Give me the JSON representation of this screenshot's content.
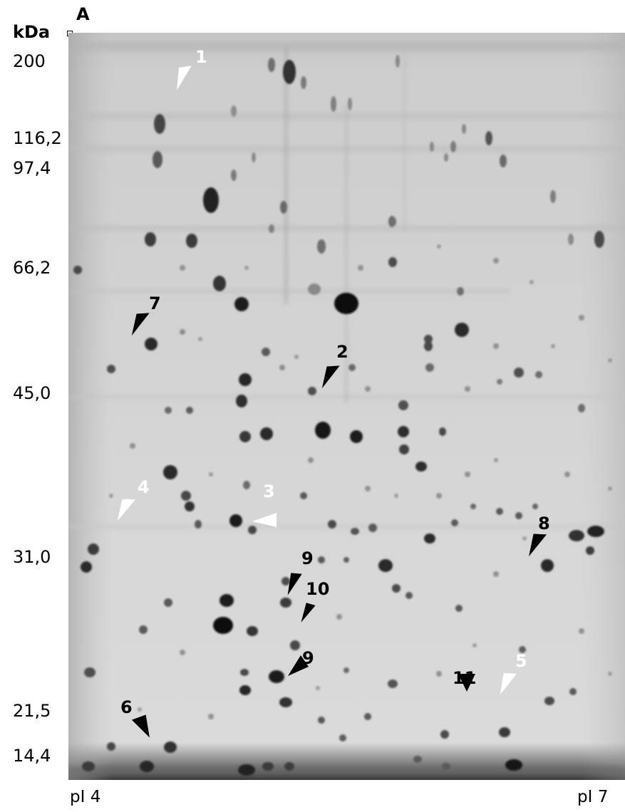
{
  "panel_label": "A",
  "y_axis": {
    "unit": "kDa",
    "markers": [
      "200",
      "116,2",
      "97,4",
      "66,2",
      "45,0",
      "31,0",
      "21,5",
      "14,4"
    ]
  },
  "x_axis": {
    "left_label": "pI 4",
    "right_label": "pI 7"
  },
  "annotations": [
    {
      "label": "1",
      "color": "white"
    },
    {
      "label": "2",
      "color": "black"
    },
    {
      "label": "3",
      "color": "white"
    },
    {
      "label": "4",
      "color": "white"
    },
    {
      "label": "5",
      "color": "white"
    },
    {
      "label": "6",
      "color": "black"
    },
    {
      "label": "7",
      "color": "black"
    },
    {
      "label": "8",
      "color": "black"
    },
    {
      "label": "9",
      "color": "black"
    },
    {
      "label": "10",
      "color": "black"
    },
    {
      "label": "9",
      "color": "black"
    },
    {
      "label": "11",
      "color": "black"
    }
  ]
}
